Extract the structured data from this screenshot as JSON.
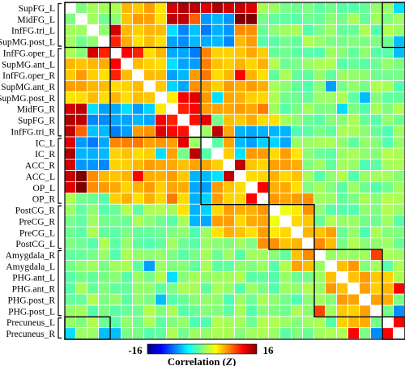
{
  "chart_data": {
    "type": "heatmap",
    "title": "",
    "row_labels": [
      "SupFG_L",
      "MidFG_L",
      "InfFG.tri_L",
      "SupMG.post_L",
      "InfFG.oper_L",
      "SupMG.ant_L",
      "InfFG.oper_R",
      "SupMG.ant_R",
      "SupMG.post_R",
      "MidFG_R",
      "SupFG_R",
      "InfFG.tri_R",
      "IC_L",
      "IC_R",
      "ACC_R",
      "ACC_L",
      "OP_L",
      "OP_R",
      "PostCG_R",
      "PreCG_R",
      "PreCG_L",
      "PostCG_L",
      "Amygdala_R",
      "Amygdala_L",
      "PHG.ant_L",
      "PHG.ant_R",
      "PHG.post_R",
      "PHG.post_L",
      "Precuneus_L",
      "Precuneus_R"
    ],
    "clusters": [
      [
        0,
        3
      ],
      [
        4,
        11
      ],
      [
        12,
        17
      ],
      [
        18,
        21
      ],
      [
        22,
        27
      ],
      [
        28,
        29
      ]
    ],
    "colorbar": {
      "min": -16,
      "max": 16,
      "min_label": "-16",
      "max_label": "16",
      "title_main": "Correlation (",
      "title_var": "Z",
      "title_end": ")",
      "colormap": "jet"
    },
    "highlights": [
      [
        0,
        8,
        9,
        14
      ],
      [
        1,
        8,
        9,
        16
      ],
      [
        2,
        8,
        4,
        13
      ],
      [
        3,
        8,
        5,
        12
      ],
      [
        0,
        4,
        5,
        6
      ],
      [
        1,
        4,
        8,
        6
      ],
      [
        2,
        4,
        7,
        7
      ],
      [
        3,
        4,
        6,
        6
      ],
      [
        5,
        4,
        6,
        5
      ],
      [
        9,
        1,
        9,
        15
      ],
      [
        4,
        6,
        12,
        7
      ],
      [
        9,
        6,
        2,
        -6
      ],
      [
        11,
        6,
        2,
        7
      ],
      [
        10,
        5,
        1,
        -7
      ],
      [
        12,
        5,
        4,
        7
      ],
      [
        13,
        5,
        4,
        6
      ],
      [
        14,
        5,
        10,
        6
      ],
      [
        15,
        5,
        11,
        -6
      ],
      [
        16,
        5,
        13,
        6
      ],
      [
        17,
        5,
        17,
        7
      ],
      [
        18,
        2,
        19,
        4
      ],
      [
        20,
        2,
        22,
        7
      ],
      [
        23,
        3,
        23,
        7
      ],
      [
        24,
        3,
        26,
        6
      ],
      [
        27,
        3,
        29,
        8
      ],
      [
        27,
        1,
        29,
        -7
      ]
    ],
    "outliers": [
      [
        1,
        10,
        14
      ],
      [
        9,
        1,
        14
      ],
      [
        6,
        15,
        12
      ],
      [
        11,
        13,
        14
      ],
      [
        14,
        15,
        14
      ],
      [
        17,
        16,
        12
      ],
      [
        4,
        29,
        -6
      ],
      [
        29,
        0,
        -14
      ],
      [
        13,
        8,
        -5
      ],
      [
        23,
        7,
        -7
      ],
      [
        26,
        8,
        -6
      ],
      [
        3,
        29,
        -6
      ],
      [
        0,
        29,
        -5
      ],
      [
        9,
        24,
        -5
      ],
      [
        3,
        4,
        11
      ],
      [
        6,
        4,
        11
      ],
      [
        11,
        1,
        9
      ],
      [
        22,
        27,
        10
      ],
      [
        25,
        29,
        12
      ],
      [
        28,
        29,
        12
      ]
    ]
  }
}
